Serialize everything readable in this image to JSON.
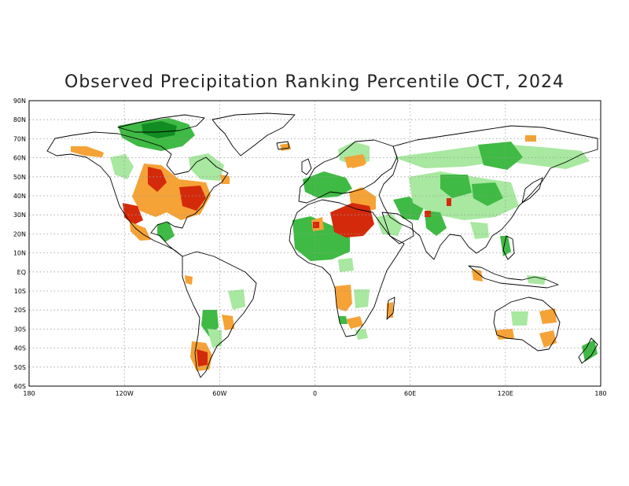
{
  "title": "Observed Precipitation Ranking Percentile OCT, 2024",
  "chart_data": {
    "type": "heatmap",
    "title": "Observed Precipitation Ranking Percentile OCT, 2024",
    "xlim": [
      -180,
      180
    ],
    "ylim": [
      -60,
      90
    ],
    "grid": true,
    "x_ticks": [
      {
        "value": -180,
        "label": "180"
      },
      {
        "value": -120,
        "label": "120W"
      },
      {
        "value": -60,
        "label": "60W"
      },
      {
        "value": 0,
        "label": "0"
      },
      {
        "value": 60,
        "label": "60E"
      },
      {
        "value": 120,
        "label": "120E"
      },
      {
        "value": 180,
        "label": "180"
      }
    ],
    "y_ticks": [
      {
        "value": 90,
        "label": "90N"
      },
      {
        "value": 80,
        "label": "80N"
      },
      {
        "value": 70,
        "label": "70N"
      },
      {
        "value": 60,
        "label": "60N"
      },
      {
        "value": 50,
        "label": "50N"
      },
      {
        "value": 40,
        "label": "40N"
      },
      {
        "value": 30,
        "label": "30N"
      },
      {
        "value": 20,
        "label": "20N"
      },
      {
        "value": 10,
        "label": "10N"
      },
      {
        "value": 0,
        "label": "EQ"
      },
      {
        "value": -10,
        "label": "10S"
      },
      {
        "value": -20,
        "label": "20S"
      },
      {
        "value": -30,
        "label": "30S"
      },
      {
        "value": -40,
        "label": "40S"
      },
      {
        "value": -50,
        "label": "50S"
      },
      {
        "value": -60,
        "label": "60S"
      }
    ],
    "colors": {
      "very_dry": "#d42a0c",
      "dry": "#f5a236",
      "wet": "#a8e8a0",
      "very_wet": "#3fba44",
      "extreme_wet": "#128c22"
    }
  }
}
